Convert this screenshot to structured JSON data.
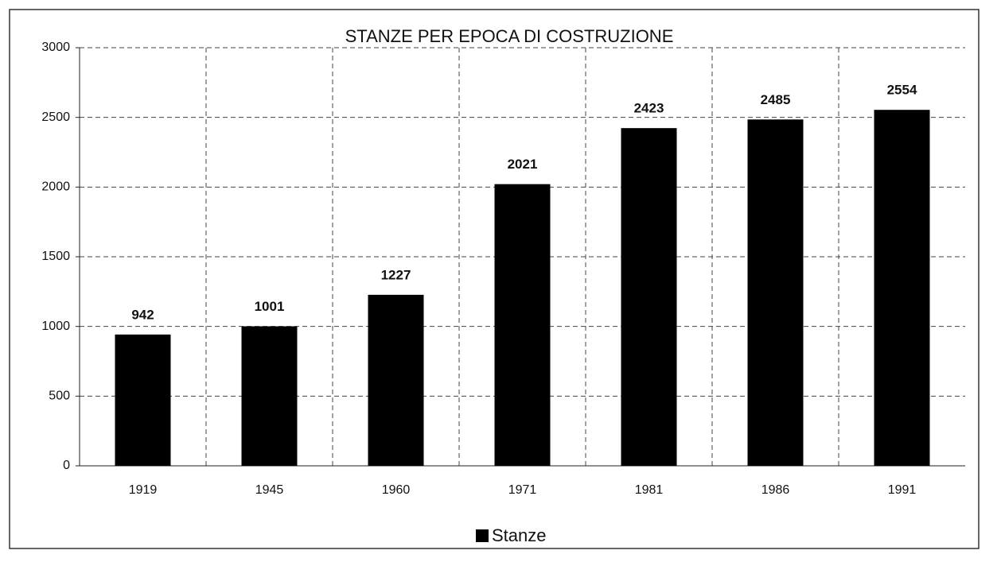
{
  "chart_data": {
    "type": "bar",
    "title": "STANZE PER EPOCA DI COSTRUZIONE",
    "categories": [
      "1919",
      "1945",
      "1960",
      "1971",
      "1981",
      "1986",
      "1991"
    ],
    "series": [
      {
        "name": "Stanze",
        "color": "#000000",
        "values": [
          942,
          1001,
          1227,
          2021,
          2423,
          2485,
          2554
        ]
      }
    ],
    "ylim": [
      0,
      3000
    ],
    "yticks": [
      0,
      500,
      1000,
      1500,
      2000,
      2500,
      3000
    ],
    "grid": true,
    "legend": "bottom"
  }
}
